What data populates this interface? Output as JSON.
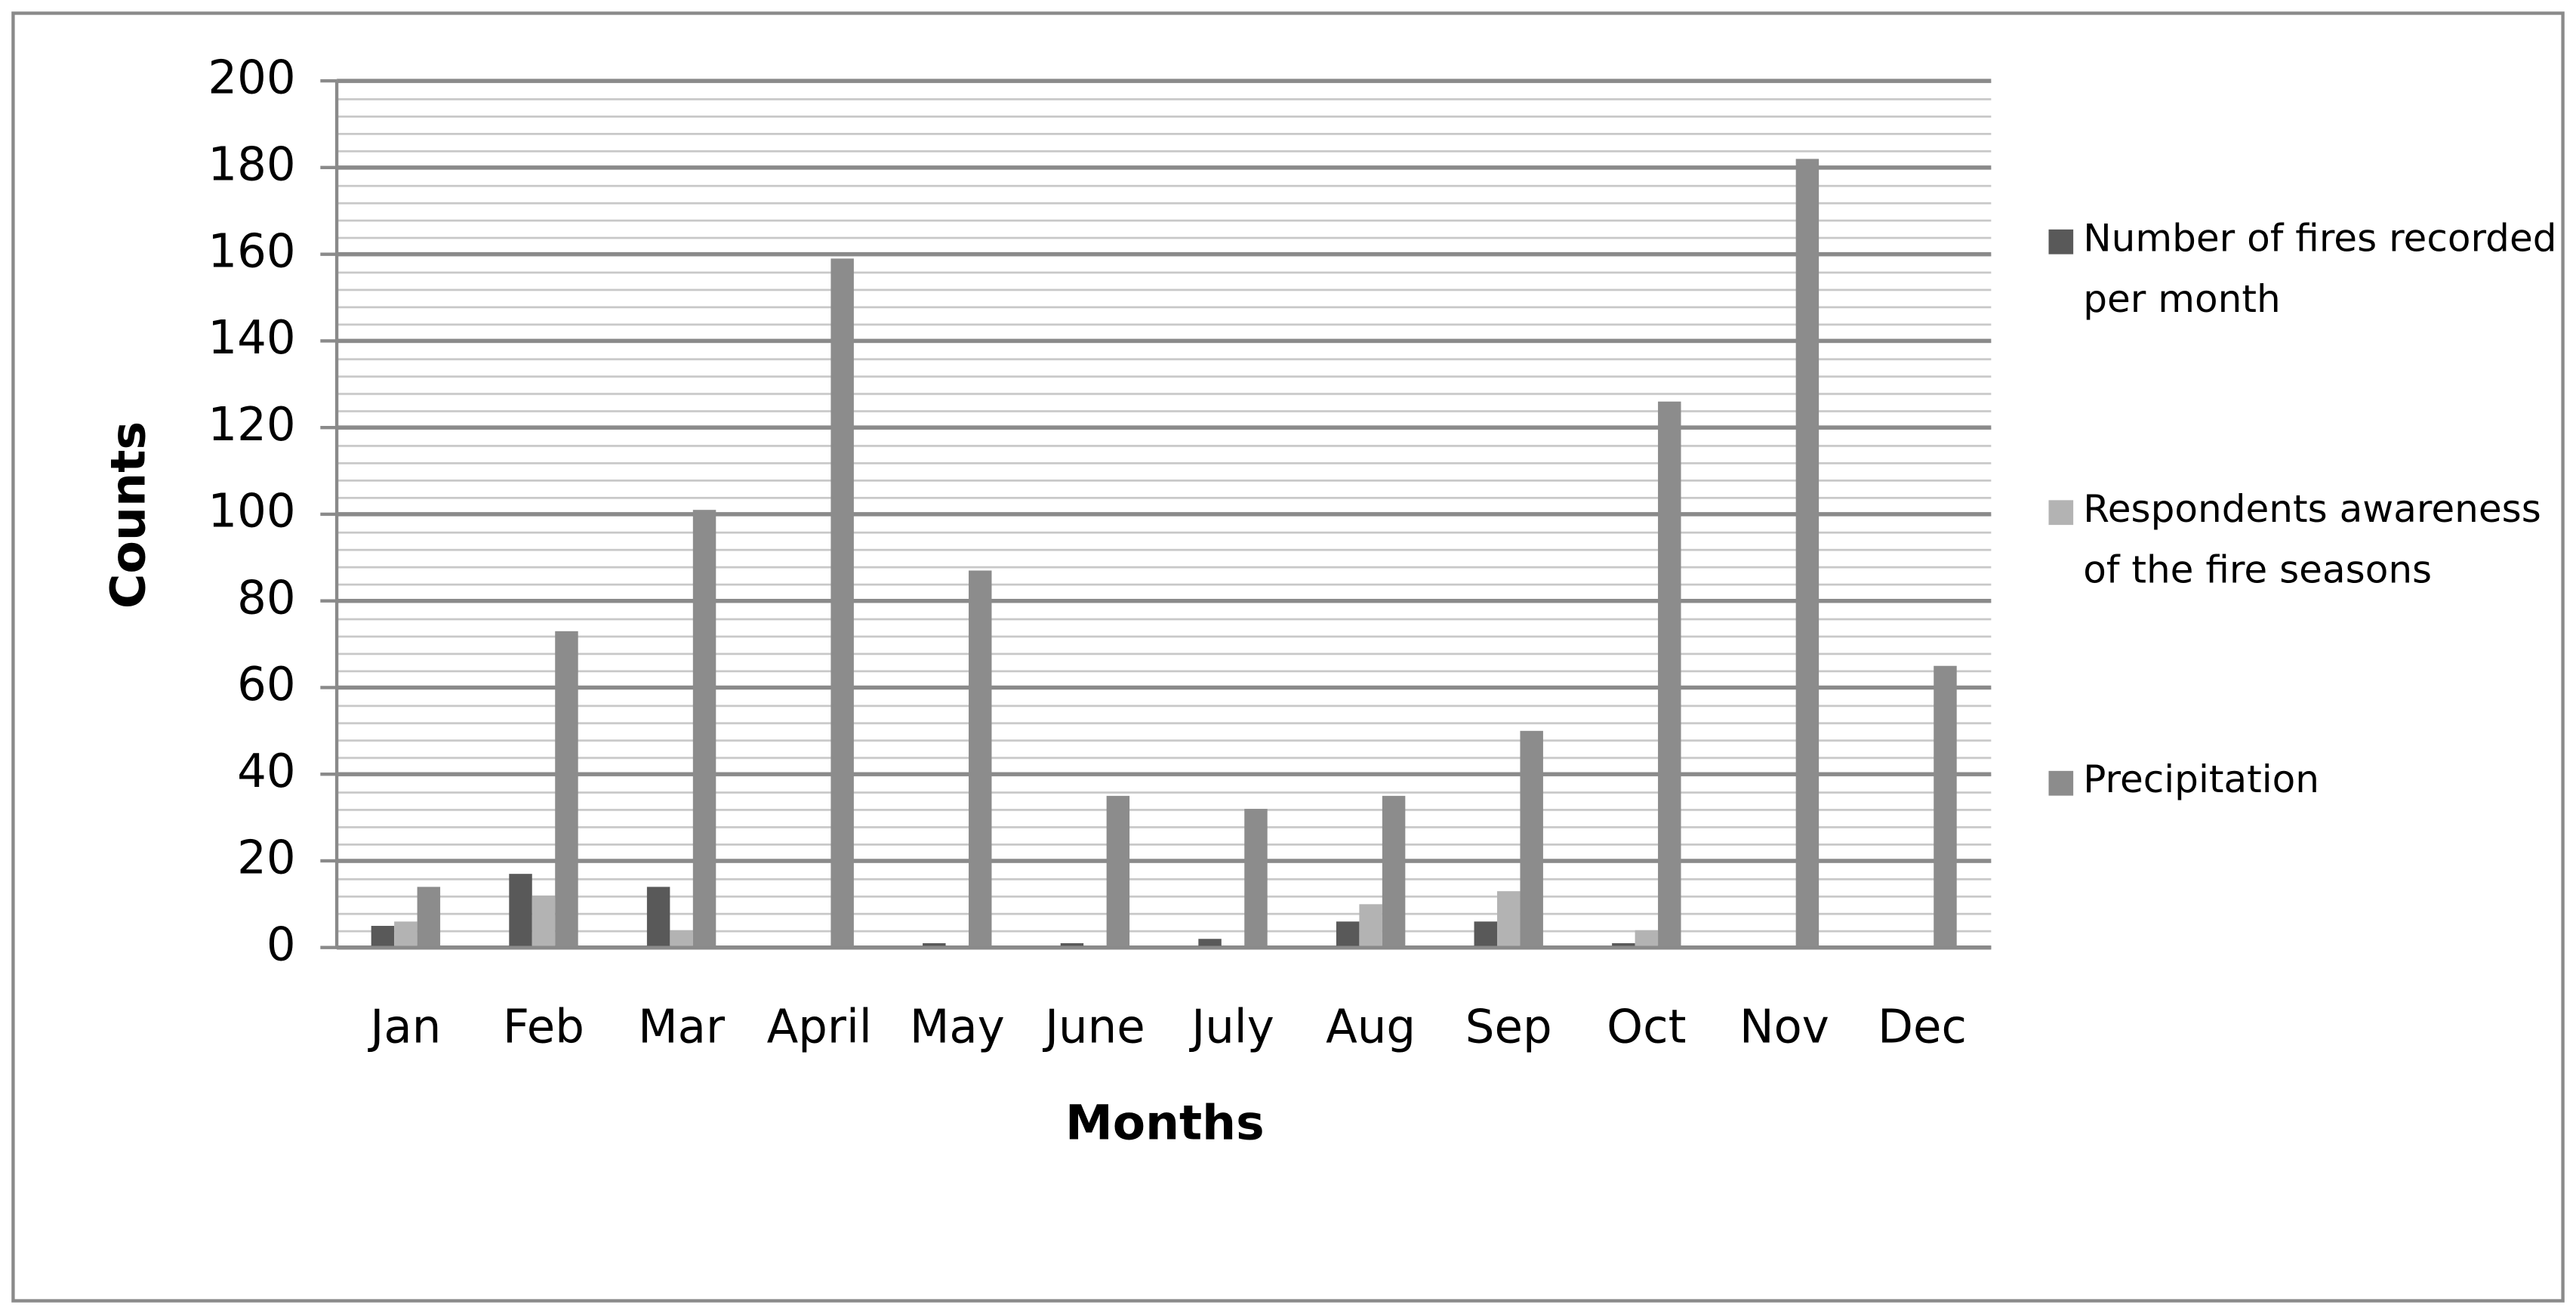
{
  "chart_data": {
    "type": "bar",
    "x_label": "Months",
    "y_label": "Counts",
    "categories": [
      "Jan",
      "Feb",
      "Mar",
      "April",
      "May",
      "June",
      "July",
      "Aug",
      "Sep",
      "Oct",
      "Nov",
      "Dec"
    ],
    "series": [
      {
        "name": "Number of fires recorded per month",
        "color": "#595959",
        "values": [
          5,
          17,
          14,
          0,
          1,
          1,
          2,
          6,
          6,
          1,
          0,
          0
        ]
      },
      {
        "name": "Respondents awareness of the fire seasons",
        "color": "#b3b3b3",
        "values": [
          6,
          12,
          4,
          0,
          0,
          0,
          0,
          10,
          13,
          4,
          0,
          0
        ]
      },
      {
        "name": "Precipitation",
        "color": "#8c8c8c",
        "values": [
          14,
          73,
          101,
          159,
          87,
          35,
          32,
          35,
          50,
          126,
          182,
          65
        ]
      }
    ],
    "ylim": [
      0,
      200
    ],
    "yticks": [
      0,
      20,
      40,
      60,
      80,
      100,
      120,
      140,
      160,
      180,
      200
    ],
    "grid": true,
    "legend": "right"
  }
}
